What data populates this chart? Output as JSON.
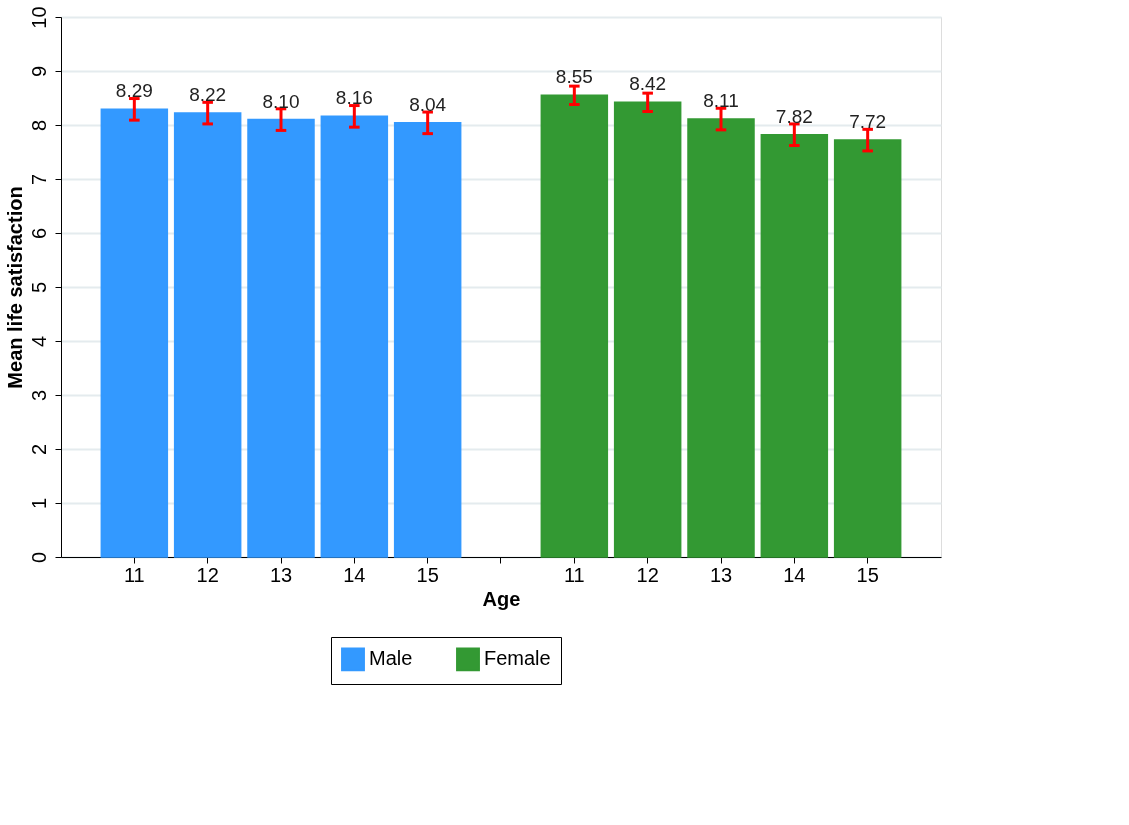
{
  "chart_data": {
    "type": "bar",
    "xlabel": "Age",
    "ylabel": "Mean life satisfaction",
    "categories": [
      "11",
      "12",
      "13",
      "14",
      "15",
      null,
      "11",
      "12",
      "13",
      "14",
      "15"
    ],
    "series": [
      {
        "name": "Male",
        "color": "#3399ff",
        "values": [
          8.29,
          8.22,
          8.1,
          8.16,
          8.04,
          null,
          null,
          null,
          null,
          null,
          null
        ],
        "value_labels": [
          "8.29",
          "8.22",
          "8.10",
          "8.16",
          "8.04",
          null,
          null,
          null,
          null,
          null,
          null
        ],
        "errors": [
          0.2,
          0.2,
          0.2,
          0.2,
          0.2,
          null,
          null,
          null,
          null,
          null,
          null
        ]
      },
      {
        "name": "Female",
        "color": "#339933",
        "values": [
          null,
          null,
          null,
          null,
          null,
          null,
          8.55,
          8.42,
          8.11,
          7.82,
          7.72
        ],
        "value_labels": [
          null,
          null,
          null,
          null,
          null,
          null,
          "8.55",
          "8.42",
          "8.11",
          "7.82",
          "7.72"
        ],
        "errors": [
          null,
          null,
          null,
          null,
          null,
          null,
          0.17,
          0.17,
          0.2,
          0.2,
          0.2
        ]
      }
    ],
    "ylim": [
      0,
      10
    ],
    "yticks": [
      0,
      1,
      2,
      3,
      4,
      5,
      6,
      7,
      8,
      9,
      10
    ],
    "grid": "y",
    "legend": "bottom",
    "data_labels": true
  }
}
